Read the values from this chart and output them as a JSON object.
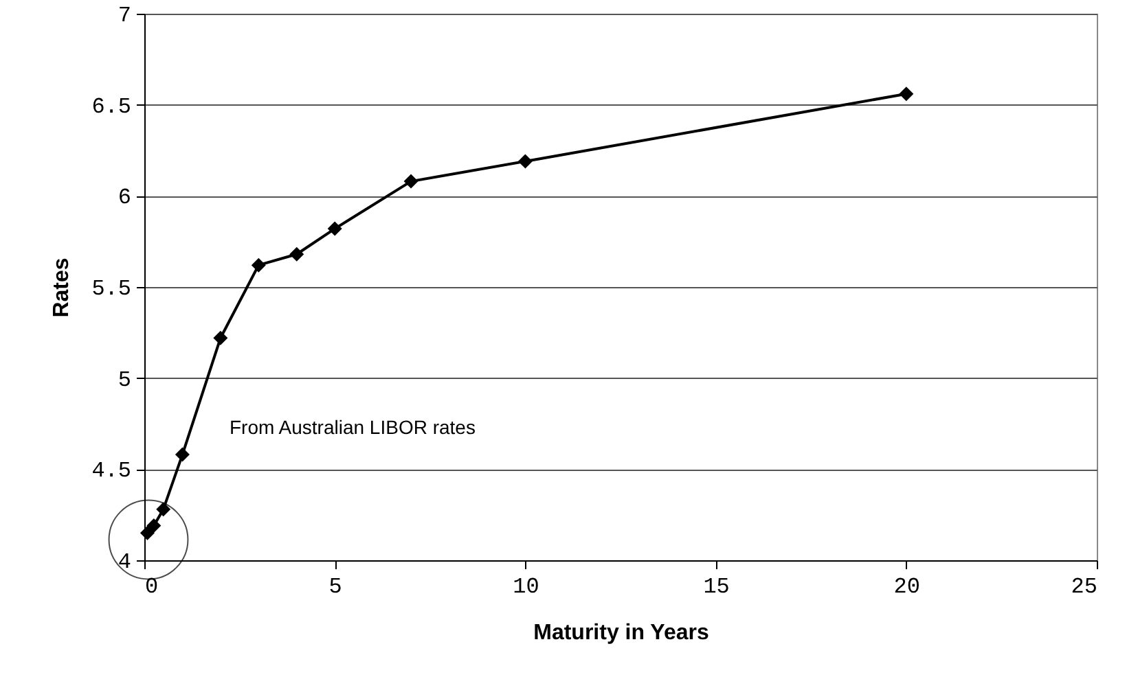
{
  "chart_data": {
    "type": "line",
    "xlabel": "Maturity in Years",
    "ylabel": "Rates",
    "x": [
      0.08,
      0.25,
      0.5,
      1,
      2,
      3,
      4,
      5,
      7,
      10,
      20
    ],
    "series": [
      {
        "color": "#000000",
        "values": [
          4.15,
          4.19,
          4.28,
          4.58,
          5.22,
          5.62,
          5.68,
          5.82,
          6.08,
          6.19,
          6.56
        ]
      }
    ],
    "xlim": [
      0,
      25
    ],
    "xticks": [
      0,
      5,
      10,
      15,
      20,
      25
    ],
    "ylim": [
      4,
      7
    ],
    "yticks": [
      4,
      4.5,
      5,
      5.5,
      6,
      6.5,
      7
    ],
    "grid": "y",
    "marker": "diamond",
    "line_style": "solid",
    "annotations": [
      "From Australian LIBOR rates"
    ]
  }
}
